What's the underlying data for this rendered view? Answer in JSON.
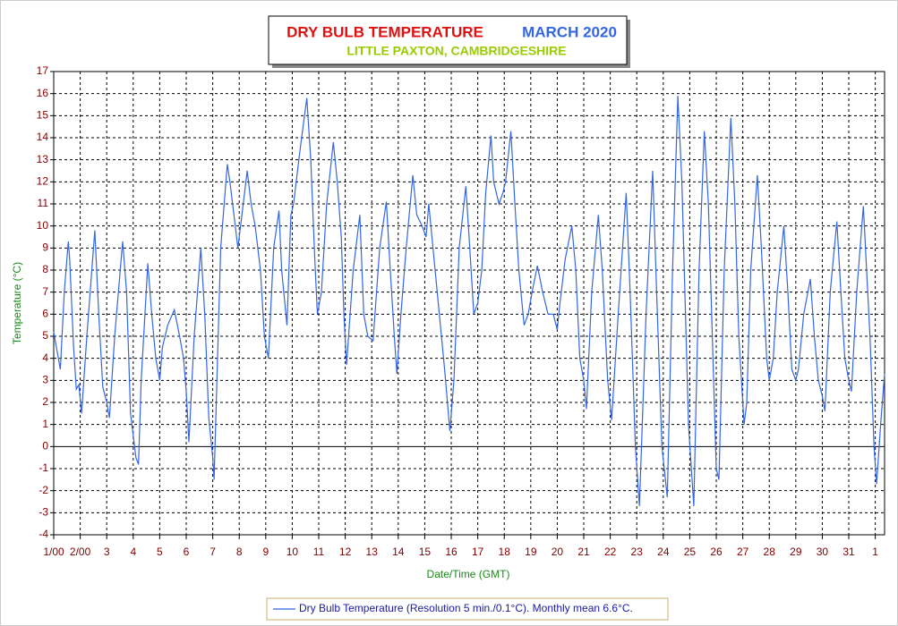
{
  "chart_data": {
    "type": "line",
    "title": "DRY BULB TEMPERATURE",
    "period": "MARCH 2020",
    "subtitle": "LITTLE PAXTON, CAMBRIDGESHIRE",
    "y_label": "Temperature (°C)",
    "x_label": "Date/Time (GMT)",
    "grid": true,
    "legend": "bottom",
    "xlim": [
      0,
      31.35
    ],
    "ylim": [
      -4,
      17
    ],
    "yticks": [
      -4,
      -3,
      -2,
      -1,
      0,
      1,
      2,
      3,
      4,
      5,
      6,
      7,
      8,
      9,
      10,
      11,
      12,
      13,
      14,
      15,
      16,
      17
    ],
    "xticks": [
      {
        "value": 0,
        "label": "1/00"
      },
      {
        "value": 1,
        "label": "2/00"
      },
      {
        "value": 2,
        "label": "3"
      },
      {
        "value": 3,
        "label": "4"
      },
      {
        "value": 4,
        "label": "5"
      },
      {
        "value": 5,
        "label": "6"
      },
      {
        "value": 6,
        "label": "7"
      },
      {
        "value": 7,
        "label": "8"
      },
      {
        "value": 8,
        "label": "9"
      },
      {
        "value": 9,
        "label": "10"
      },
      {
        "value": 10,
        "label": "11"
      },
      {
        "value": 11,
        "label": "12"
      },
      {
        "value": 12,
        "label": "13"
      },
      {
        "value": 13,
        "label": "14"
      },
      {
        "value": 14,
        "label": "15"
      },
      {
        "value": 15,
        "label": "16"
      },
      {
        "value": 16,
        "label": "17"
      },
      {
        "value": 17,
        "label": "18"
      },
      {
        "value": 18,
        "label": "19"
      },
      {
        "value": 19,
        "label": "20"
      },
      {
        "value": 20,
        "label": "21"
      },
      {
        "value": 21,
        "label": "22"
      },
      {
        "value": 22,
        "label": "23"
      },
      {
        "value": 23,
        "label": "24"
      },
      {
        "value": 24,
        "label": "25"
      },
      {
        "value": 25,
        "label": "26"
      },
      {
        "value": 26,
        "label": "27"
      },
      {
        "value": 27,
        "label": "28"
      },
      {
        "value": 28,
        "label": "29"
      },
      {
        "value": 29,
        "label": "30"
      },
      {
        "value": 30,
        "label": "31"
      },
      {
        "value": 31,
        "label": "1"
      }
    ],
    "x": [
      0,
      0.1,
      0.25,
      0.4,
      0.55,
      0.6,
      0.75,
      0.85,
      0.95,
      1.05,
      1.25,
      1.55,
      1.7,
      1.85,
      2.0,
      2.1,
      2.3,
      2.6,
      2.75,
      2.9,
      3.0,
      3.1,
      3.2,
      3.3,
      3.55,
      3.7,
      3.85,
      4.0,
      4.1,
      4.3,
      4.55,
      4.75,
      4.9,
      5.0,
      5.1,
      5.3,
      5.55,
      5.7,
      5.85,
      6.0,
      6.05,
      6.3,
      6.55,
      6.65,
      6.8,
      6.95,
      7.1,
      7.3,
      7.45,
      7.6,
      7.8,
      7.95,
      8.1,
      8.3,
      8.5,
      8.6,
      8.8,
      8.95,
      9.05,
      9.3,
      9.55,
      9.7,
      9.85,
      9.95,
      10.1,
      10.3,
      10.55,
      10.7,
      10.85,
      10.95,
      11.05,
      11.3,
      11.55,
      11.7,
      11.85,
      12.05,
      12.3,
      12.55,
      12.7,
      12.85,
      12.95,
      13.1,
      13.3,
      13.55,
      13.7,
      13.9,
      14.05,
      14.15,
      14.35,
      14.55,
      14.75,
      14.95,
      15.1,
      15.3,
      15.55,
      15.7,
      15.85,
      16.0,
      16.15,
      16.3,
      16.5,
      16.6,
      16.8,
      16.95,
      17.05,
      17.25,
      17.4,
      17.55,
      17.75,
      17.9,
      18.05,
      18.25,
      18.45,
      18.65,
      18.85,
      19.0,
      19.1,
      19.3,
      19.55,
      19.7,
      19.85,
      20.0,
      20.1,
      20.3,
      20.55,
      20.7,
      20.9,
      21.05,
      21.3,
      21.6,
      21.75,
      21.95,
      22.1,
      22.35,
      22.6,
      22.75,
      22.95,
      23.15,
      23.35,
      23.55,
      23.7,
      23.95,
      24.15,
      24.35,
      24.55,
      24.7,
      24.85,
      25.0,
      25.1,
      25.3,
      25.55,
      25.7,
      25.85,
      26.05,
      26.15,
      26.3,
      26.55,
      26.7,
      26.9,
      27.0,
      27.15,
      27.3,
      27.55,
      27.7,
      27.85,
      28.0,
      28.1,
      28.3,
      28.55,
      28.7,
      28.85,
      29.0,
      29.1,
      29.3,
      29.55,
      29.7,
      29.85,
      30.0,
      30.1,
      30.3,
      30.55,
      30.65,
      30.8,
      30.95,
      31.05,
      31.2,
      31.35
    ],
    "series": [
      {
        "name": "Dry Bulb Temperature (Resolution 5 min./0.1°C). Monthly mean 6.6°C.",
        "color": "#3366e6",
        "values": [
          5.2,
          4.5,
          3.5,
          7,
          9.3,
          8.5,
          4.5,
          2.6,
          2.8,
          1.5,
          5,
          9.8,
          6,
          2.7,
          2.0,
          1.3,
          5,
          9.3,
          7,
          1.5,
          0.5,
          -0.5,
          -0.8,
          3,
          8.3,
          6,
          4,
          3,
          4.5,
          5.5,
          6.2,
          5,
          4,
          2.5,
          0.2,
          5,
          9,
          6,
          1.3,
          -0.5,
          -1.5,
          9,
          12.8,
          12,
          10.5,
          9,
          10.5,
          12.5,
          11,
          10,
          8,
          5,
          4,
          9,
          10.7,
          8,
          5.5,
          10.5,
          11,
          13.5,
          15.8,
          13,
          8.5,
          6,
          7,
          11,
          13.8,
          12,
          9.5,
          6,
          3.7,
          8,
          10.5,
          6,
          5,
          4.8,
          9,
          11.1,
          8,
          5,
          3.3,
          6,
          9,
          12.3,
          10.5,
          10,
          9.5,
          11,
          8.5,
          6,
          3.5,
          0.7,
          3,
          9,
          11.8,
          9,
          6,
          6.5,
          8,
          11.5,
          14.1,
          12,
          11,
          11.5,
          12,
          14.3,
          11,
          8,
          5.5,
          6,
          7,
          8.2,
          7,
          6,
          6,
          5.3,
          6.5,
          8.5,
          10,
          8,
          4,
          3,
          1.7,
          7,
          10.5,
          8,
          3,
          1.2,
          6,
          11.5,
          7,
          0,
          -2.7,
          6,
          12.5,
          7,
          0,
          -2.3,
          8,
          15.9,
          12,
          1,
          -2.7,
          8,
          14.3,
          11,
          5,
          -1,
          -1.5,
          8,
          14.9,
          11,
          5,
          1,
          2,
          8,
          12.3,
          9,
          4,
          3,
          4,
          7,
          10,
          7,
          3.5,
          3,
          3.5,
          6,
          7.6,
          5,
          3,
          2.3,
          1.6,
          7,
          10.2,
          7,
          4,
          3,
          2.5,
          7,
          10.9,
          8.5,
          5,
          0,
          -1.7,
          1,
          3.3
        ]
      }
    ]
  }
}
